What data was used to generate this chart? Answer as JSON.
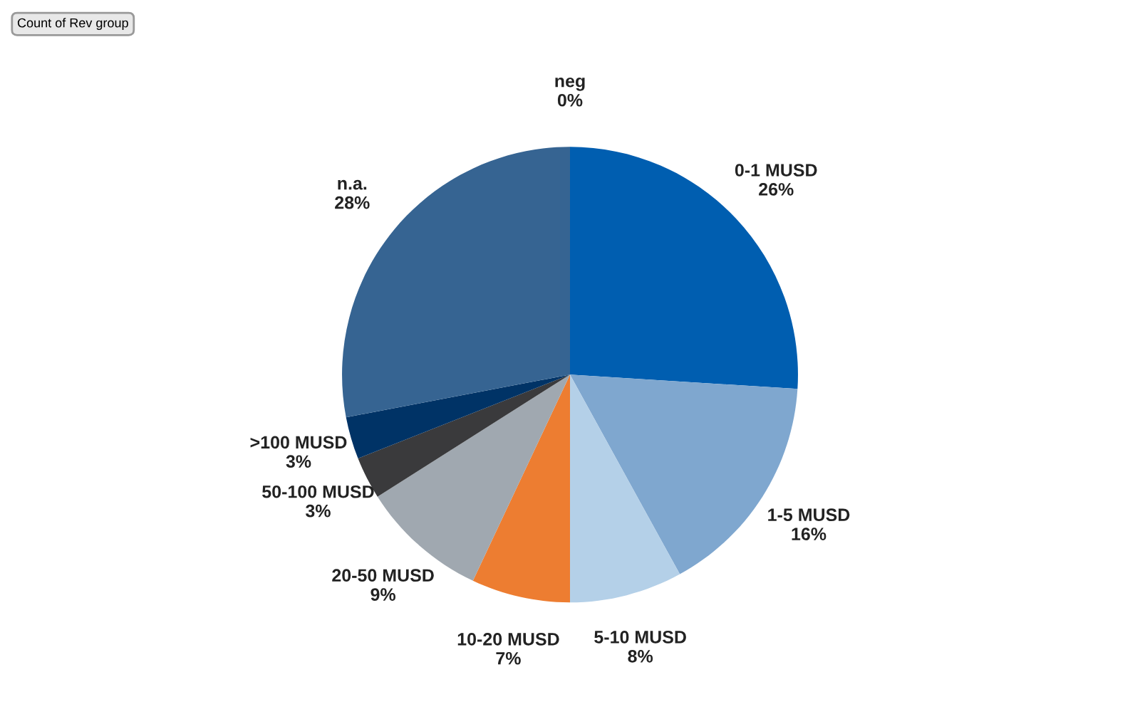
{
  "chart_data": {
    "type": "pie",
    "categories": [
      "neg",
      "0-1 MUSD",
      "1-5 MUSD",
      "5-10 MUSD",
      "10-20 MUSD",
      "20-50 MUSD",
      "50-100 MUSD",
      ">100 MUSD",
      "n.a."
    ],
    "values": [
      0,
      26,
      16,
      8,
      7,
      9,
      3,
      3,
      28
    ],
    "value_labels": [
      "0%",
      "26%",
      "16%",
      "8%",
      "7%",
      "9%",
      "3%",
      "3%",
      "28%"
    ],
    "colors": [
      "#2a5a8a",
      "#005eb0",
      "#7fa7cf",
      "#b4d0e8",
      "#ed7d31",
      "#a0a8b0",
      "#3a3a3c",
      "#003366",
      "#366492"
    ],
    "annotations": [
      "Count of Rev group"
    ],
    "legend": false
  }
}
